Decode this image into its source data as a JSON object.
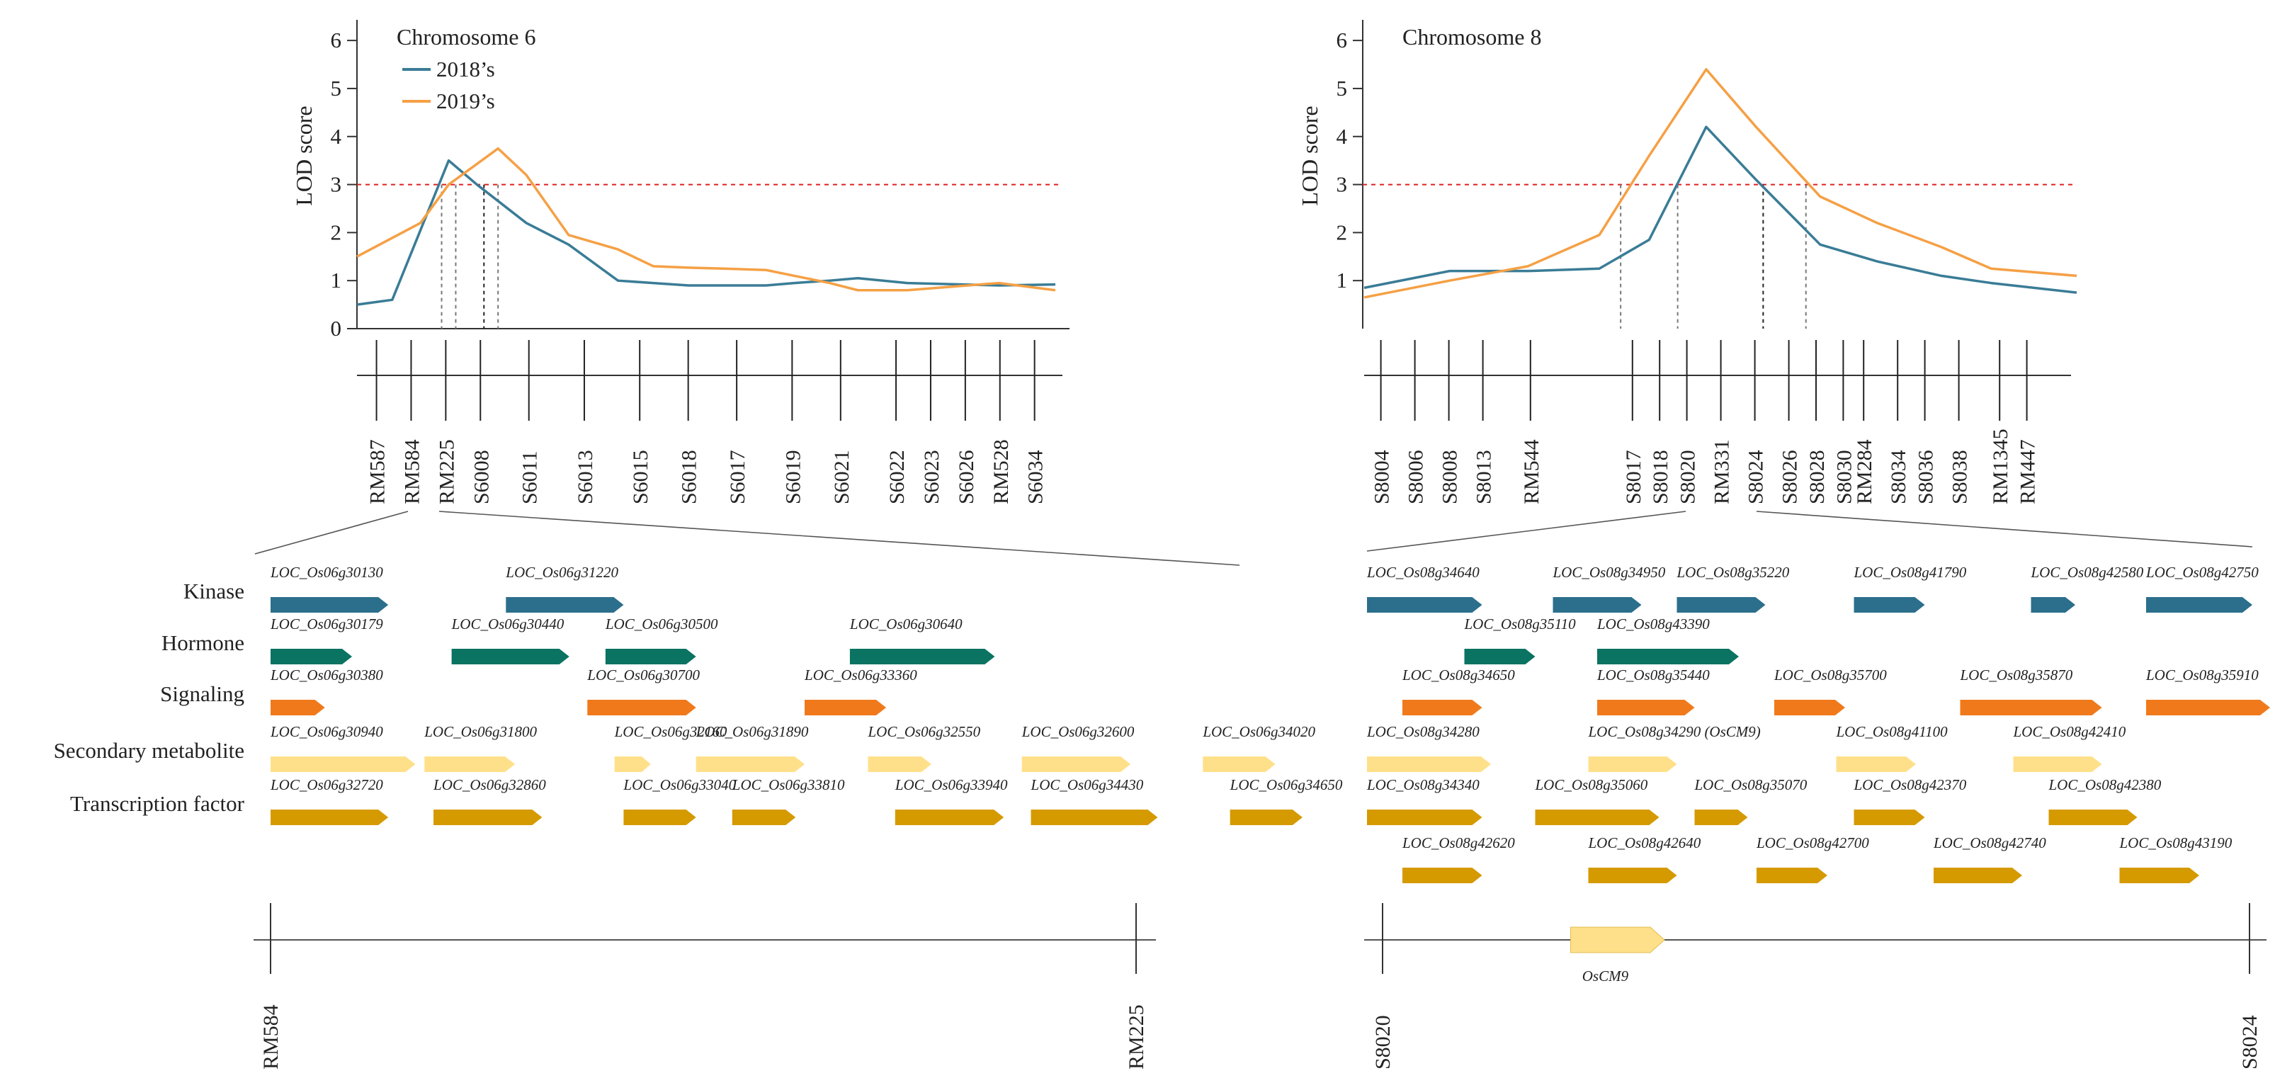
{
  "chart_data": [
    {
      "type": "line",
      "title": "Chromosome 6",
      "ylabel": "LOD score",
      "xlabel": "",
      "ylim": [
        0,
        6.4
      ],
      "yticks": [
        0,
        1,
        2,
        3,
        4,
        5,
        6
      ],
      "threshold": 3,
      "series": [
        {
          "name": "2018’s",
          "color": "#3a7c96",
          "x": [
            0,
            0.05,
            0.13,
            0.17,
            0.24,
            0.3,
            0.37,
            0.42,
            0.47,
            0.52,
            0.58,
            0.62,
            0.67,
            0.71,
            0.78,
            0.91,
            0.99
          ],
          "y": [
            0.5,
            0.6,
            3.5,
            3.0,
            2.2,
            1.75,
            1.0,
            0.95,
            0.9,
            0.9,
            0.9,
            0.95,
            1.0,
            1.05,
            0.95,
            0.9,
            0.92
          ]
        },
        {
          "name": "2019’s",
          "color": "#f5a045",
          "x": [
            0,
            0.09,
            0.13,
            0.2,
            0.24,
            0.3,
            0.37,
            0.42,
            0.47,
            0.52,
            0.58,
            0.62,
            0.67,
            0.71,
            0.78,
            0.91,
            0.99
          ],
          "y": [
            1.5,
            2.2,
            3.0,
            3.75,
            3.2,
            1.95,
            1.65,
            1.3,
            1.27,
            1.25,
            1.22,
            1.1,
            0.95,
            0.8,
            0.8,
            0.95,
            0.8
          ]
        }
      ],
      "crossings": [
        0.12,
        0.14,
        0.18,
        0.2
      ],
      "markers": [
        "RM587",
        "RM584",
        "RM225",
        "S6008",
        "S6011",
        "S6013",
        "S6015",
        "S6018",
        "S6017",
        "S6019",
        "S6021",
        "S6022",
        "S6023",
        "S6026",
        "RM528",
        "S6034"
      ],
      "marker_positions": [
        0.02,
        0.07,
        0.12,
        0.17,
        0.24,
        0.32,
        0.4,
        0.47,
        0.54,
        0.62,
        0.69,
        0.77,
        0.82,
        0.87,
        0.92,
        0.97
      ],
      "region": {
        "left": "RM584",
        "right": "RM225"
      },
      "genes": [
        {
          "category": "Kinase",
          "color": "#2b6f8c",
          "items": [
            {
              "name": "LOC_Os06g30130",
              "start": 0.0,
              "end": 0.13
            },
            {
              "name": "LOC_Os06g31220",
              "start": 0.26,
              "end": 0.39
            }
          ]
        },
        {
          "category": "Hormone",
          "color": "#0a7361",
          "items": [
            {
              "name": "LOC_Os06g30179",
              "start": 0.0,
              "end": 0.09
            },
            {
              "name": "LOC_Os06g30440",
              "start": 0.2,
              "end": 0.33
            },
            {
              "name": "LOC_Os06g30500",
              "start": 0.37,
              "end": 0.47
            },
            {
              "name": "LOC_Os06g30640",
              "start": 0.64,
              "end": 0.8
            }
          ]
        },
        {
          "category": "Signaling",
          "color": "#f07a1b",
          "items": [
            {
              "name": "LOC_Os06g30380",
              "start": 0.0,
              "end": 0.06
            },
            {
              "name": "LOC_Os06g30700",
              "start": 0.35,
              "end": 0.47
            },
            {
              "name": "LOC_Os06g33360",
              "start": 0.59,
              "end": 0.68
            }
          ]
        },
        {
          "category": "Secondary metabolite",
          "color": "#ffe08a",
          "items": [
            {
              "name": "LOC_Os06g30940",
              "start": 0.0,
              "end": 0.16
            },
            {
              "name": "LOC_Os06g31800",
              "start": 0.17,
              "end": 0.27
            },
            {
              "name": "LOC_Os06g32160",
              "start": 0.38,
              "end": 0.42
            },
            {
              "name": "LOC_Os06g31890",
              "start": 0.47,
              "end": 0.59
            },
            {
              "name": "LOC_Os06g32550",
              "start": 0.66,
              "end": 0.73
            },
            {
              "name": "LOC_Os06g32600",
              "start": 0.83,
              "end": 0.95
            },
            {
              "name": "LOC_Os06g34020",
              "start": 1.03,
              "end": 1.11
            }
          ]
        },
        {
          "category": "Transcription factor",
          "color": "#d59a00",
          "items": [
            {
              "name": "LOC_Os06g32720",
              "start": 0.0,
              "end": 0.13
            },
            {
              "name": "LOC_Os06g32860",
              "start": 0.18,
              "end": 0.3
            },
            {
              "name": "LOC_Os06g33040",
              "start": 0.39,
              "end": 0.47
            },
            {
              "name": "LOC_Os06g33810",
              "start": 0.51,
              "end": 0.58
            },
            {
              "name": "LOC_Os06g33940",
              "start": 0.69,
              "end": 0.81
            },
            {
              "name": "LOC_Os06g34430",
              "start": 0.84,
              "end": 0.98
            },
            {
              "name": "LOC_Os06g34650",
              "start": 1.06,
              "end": 1.14
            }
          ]
        }
      ]
    },
    {
      "type": "line",
      "title": "Chromosome 8",
      "ylabel": "LOD score",
      "xlabel": "",
      "ylim": [
        0,
        6.4
      ],
      "yticks": [
        1,
        2,
        3,
        4,
        5,
        6
      ],
      "threshold": 3,
      "series": [
        {
          "name": "2018",
          "color": "#3a7c96",
          "x": [
            0,
            0.12,
            0.23,
            0.33,
            0.4,
            0.48,
            0.55,
            0.64,
            0.72,
            0.81,
            0.88,
            1.0
          ],
          "y": [
            0.85,
            1.2,
            1.2,
            1.25,
            1.85,
            4.2,
            3.1,
            1.75,
            1.4,
            1.1,
            0.95,
            0.75
          ]
        },
        {
          "name": "2019",
          "color": "#f5a045",
          "x": [
            0,
            0.12,
            0.23,
            0.33,
            0.4,
            0.48,
            0.55,
            0.64,
            0.72,
            0.81,
            0.88,
            1.0
          ],
          "y": [
            0.65,
            1.0,
            1.3,
            1.95,
            3.6,
            5.4,
            4.2,
            2.75,
            2.2,
            1.7,
            1.25,
            1.1
          ]
        }
      ],
      "crossings": [
        0.36,
        0.44,
        0.56,
        0.62
      ],
      "markers": [
        "S8004",
        "S8006",
        "S8008",
        "S8013",
        "RM544",
        "S8017",
        "S8018",
        "S8020",
        "RM331",
        "S8024",
        "S8026",
        "S8028",
        "S8030",
        "RM284",
        "S8034",
        "S8036",
        "S8038",
        "RM1345",
        "RM447"
      ],
      "marker_positions": [
        0.01,
        0.06,
        0.11,
        0.16,
        0.23,
        0.38,
        0.42,
        0.46,
        0.51,
        0.56,
        0.61,
        0.65,
        0.69,
        0.72,
        0.77,
        0.81,
        0.86,
        0.92,
        0.96
      ],
      "region": {
        "left": "S8020",
        "right": "S8024"
      },
      "genes": [
        {
          "category": "Kinase",
          "color": "#2b6f8c",
          "items": [
            {
              "name": "LOC_Os08g34640",
              "start": 0.0,
              "end": 0.13
            },
            {
              "name": "LOC_Os08g34950",
              "start": 0.21,
              "end": 0.31
            },
            {
              "name": "LOC_Os08g35220",
              "start": 0.35,
              "end": 0.45
            },
            {
              "name": "LOC_Os08g41790",
              "start": 0.55,
              "end": 0.63
            },
            {
              "name": "LOC_Os08g42580",
              "start": 0.75,
              "end": 0.8
            },
            {
              "name": "LOC_Os08g42750",
              "start": 0.88,
              "end": 1.0
            }
          ]
        },
        {
          "category": "Hormone",
          "color": "#0a7361",
          "items": [
            {
              "name": "LOC_Os08g35110",
              "start": 0.11,
              "end": 0.19
            },
            {
              "name": "LOC_Os08g43390",
              "start": 0.26,
              "end": 0.42
            }
          ]
        },
        {
          "category": "Signaling",
          "color": "#f07a1b",
          "items": [
            {
              "name": "LOC_Os08g34650",
              "start": 0.04,
              "end": 0.13
            },
            {
              "name": "LOC_Os08g35440",
              "start": 0.26,
              "end": 0.37
            },
            {
              "name": "LOC_Os08g35700",
              "start": 0.46,
              "end": 0.54
            },
            {
              "name": "LOC_Os08g35870",
              "start": 0.67,
              "end": 0.83
            },
            {
              "name": "LOC_Os08g35910",
              "start": 0.88,
              "end": 1.02
            }
          ]
        },
        {
          "category": "Secondary metabolite",
          "color": "#ffe08a",
          "items": [
            {
              "name": "LOC_Os08g34280",
              "start": 0.0,
              "end": 0.14
            },
            {
              "name": "LOC_Os08g34290 (OsCM9)",
              "start": 0.25,
              "end": 0.35
            },
            {
              "name": "LOC_Os08g41100",
              "start": 0.53,
              "end": 0.62
            },
            {
              "name": "LOC_Os08g42410",
              "start": 0.73,
              "end": 0.83
            }
          ]
        },
        {
          "category": "Transcription factor",
          "color": "#d59a00",
          "items": [
            {
              "name": "LOC_Os08g34340",
              "start": 0.0,
              "end": 0.13
            },
            {
              "name": "LOC_Os08g35060",
              "start": 0.19,
              "end": 0.33
            },
            {
              "name": "LOC_Os08g35070",
              "start": 0.37,
              "end": 0.43
            },
            {
              "name": "LOC_Os08g42370",
              "start": 0.55,
              "end": 0.63
            },
            {
              "name": "LOC_Os08g42380",
              "start": 0.77,
              "end": 0.87
            }
          ]
        },
        {
          "category": "",
          "color": "#d59a00",
          "items": [
            {
              "name": "LOC_Os08g42620",
              "start": 0.04,
              "end": 0.13
            },
            {
              "name": "LOC_Os08g42640",
              "start": 0.25,
              "end": 0.35
            },
            {
              "name": "LOC_Os08g42700",
              "start": 0.44,
              "end": 0.52
            },
            {
              "name": "LOC_Os08g42740",
              "start": 0.64,
              "end": 0.74
            },
            {
              "name": "LOC_Os08g43190",
              "start": 0.85,
              "end": 0.94
            }
          ]
        }
      ],
      "highlight": {
        "name": "OsCM9",
        "start": 0.25,
        "end": 0.38,
        "color": "#ffe08a"
      }
    }
  ]
}
